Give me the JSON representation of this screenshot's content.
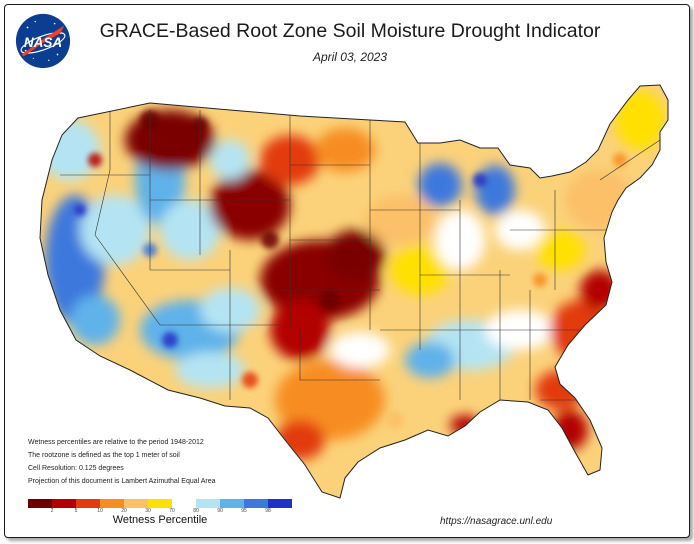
{
  "title": "GRACE-Based Root Zone Soil  Moisture Drought Indicator",
  "date": "April 03, 2023",
  "logo": {
    "text": "NASA",
    "colors": {
      "globe": "#0b3d91",
      "chevron": "#fc3d21",
      "stars": "#ffffff"
    }
  },
  "notes": [
    "Wetness percentiles are relative to the period 1948-2012",
    "The rootzone is defined as the top 1 meter of soil",
    "Cell Resolution: 0.125 degrees",
    "Projection of this document is Lambert Azimuthal Equal Area"
  ],
  "legend": {
    "label": "Wetness Percentile",
    "ticks": [
      "2",
      "5",
      "10",
      "20",
      "30",
      "70",
      "80",
      "90",
      "95",
      "98"
    ],
    "colors": [
      "#6b0000",
      "#b30000",
      "#e23b0e",
      "#f78d21",
      "#fbc068",
      "#ffe000",
      "#ffffff",
      "#b4e4f3",
      "#5fb2ea",
      "#3d78dd",
      "#2032c4"
    ]
  },
  "url": "https://nasagrace.unl.edu",
  "map_regions": [
    {
      "name": "northern-rockies-drought",
      "color": "#7a0000"
    },
    {
      "name": "southern-plains-drought",
      "color": "#8a0000"
    },
    {
      "name": "california-wet",
      "color": "#3d78dd"
    },
    {
      "name": "great-basin-wet",
      "color": "#5fb2ea"
    },
    {
      "name": "southwest-wet",
      "color": "#b4e4f3"
    },
    {
      "name": "great-lakes-wet",
      "color": "#3d78dd"
    },
    {
      "name": "midsouth-wet",
      "color": "#b4e4f3"
    },
    {
      "name": "southeast-dry",
      "color": "#e23b0e"
    },
    {
      "name": "florida-drought",
      "color": "#b30000"
    },
    {
      "name": "texas-dry",
      "color": "#f78d21"
    },
    {
      "name": "northeast-dry",
      "color": "#fbc068"
    }
  ]
}
